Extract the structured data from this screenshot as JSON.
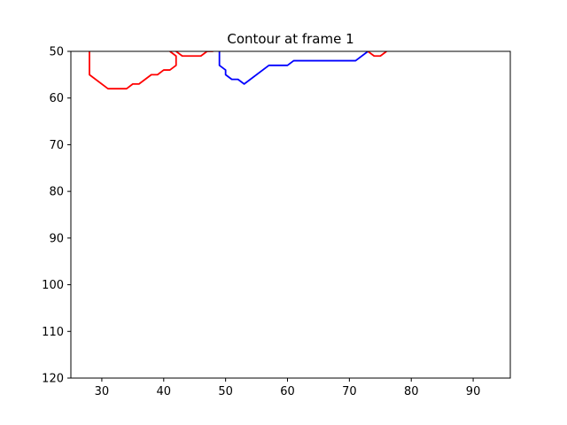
{
  "chart_data": {
    "type": "line",
    "title": "Contour at frame 1",
    "xlabel": "",
    "ylabel": "",
    "xlim": [
      25,
      96
    ],
    "ylim": [
      120,
      50
    ],
    "y_inverted": true,
    "grid": false,
    "x_ticks": [
      30,
      40,
      50,
      60,
      70,
      80,
      90
    ],
    "y_ticks": [
      50,
      60,
      70,
      80,
      90,
      100,
      110,
      120
    ],
    "series": [
      {
        "color": "#ff0000",
        "points": [
          [
            28,
            50
          ],
          [
            28,
            55
          ],
          [
            31,
            58
          ],
          [
            34,
            58
          ],
          [
            35,
            57
          ],
          [
            36,
            57
          ],
          [
            38,
            55
          ],
          [
            39,
            55
          ],
          [
            40,
            54
          ],
          [
            41,
            54
          ],
          [
            42,
            53
          ],
          [
            42,
            51
          ],
          [
            41,
            50
          ]
        ]
      },
      {
        "color": "#ff0000",
        "points": [
          [
            42,
            50
          ],
          [
            43,
            51
          ],
          [
            46,
            51
          ],
          [
            47,
            50
          ],
          [
            48,
            50
          ]
        ]
      },
      {
        "color": "#0000ff",
        "points": [
          [
            49,
            50
          ],
          [
            49,
            53
          ],
          [
            50,
            54
          ],
          [
            50,
            55
          ],
          [
            51,
            56
          ],
          [
            52,
            56
          ],
          [
            53,
            57
          ],
          [
            57,
            53
          ],
          [
            60,
            53
          ],
          [
            61,
            52
          ],
          [
            71,
            52
          ],
          [
            73,
            50
          ]
        ]
      },
      {
        "color": "#ff0000",
        "points": [
          [
            73,
            50
          ],
          [
            74,
            51
          ],
          [
            75,
            51
          ],
          [
            76,
            50
          ]
        ]
      }
    ]
  }
}
